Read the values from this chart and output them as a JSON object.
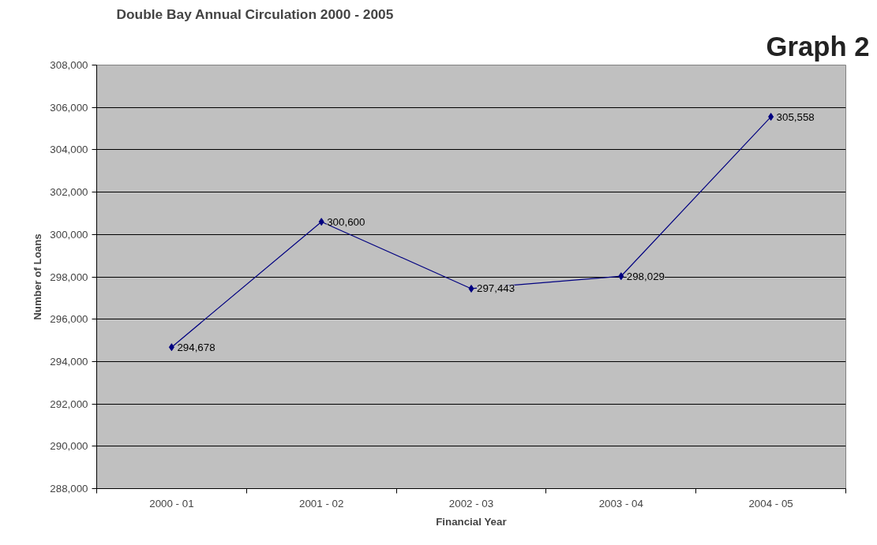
{
  "chart_data": {
    "type": "line",
    "title": "Double Bay Annual Circulation 2000 - 2005",
    "xlabel": "Financial Year",
    "ylabel": "Number of Loans",
    "annotations": [
      "Graph 2"
    ],
    "categories": [
      "2000 - 01",
      "2001 - 02",
      "2002 - 03",
      "2003 - 04",
      "2004 - 05"
    ],
    "series": [
      {
        "color": "#000080",
        "values": [
          294678,
          300600,
          297443,
          298029,
          305558
        ],
        "value_labels": [
          "294,678",
          "300,600",
          "297,443",
          "298,029",
          "305,558"
        ]
      }
    ],
    "ylim": [
      288000,
      308000
    ],
    "yticks": [
      {
        "value": 288000,
        "label": "288,000"
      },
      {
        "value": 290000,
        "label": "290,000"
      },
      {
        "value": 292000,
        "label": "292,000"
      },
      {
        "value": 294000,
        "label": "294,000"
      },
      {
        "value": 296000,
        "label": "296,000"
      },
      {
        "value": 298000,
        "label": "298,000"
      },
      {
        "value": 300000,
        "label": "300,000"
      },
      {
        "value": 302000,
        "label": "302,000"
      },
      {
        "value": 304000,
        "label": "304,000"
      },
      {
        "value": 306000,
        "label": "306,000"
      },
      {
        "value": 308000,
        "label": "308,000"
      }
    ],
    "grid": "y",
    "marker": "diamond",
    "line_style": "solid"
  }
}
